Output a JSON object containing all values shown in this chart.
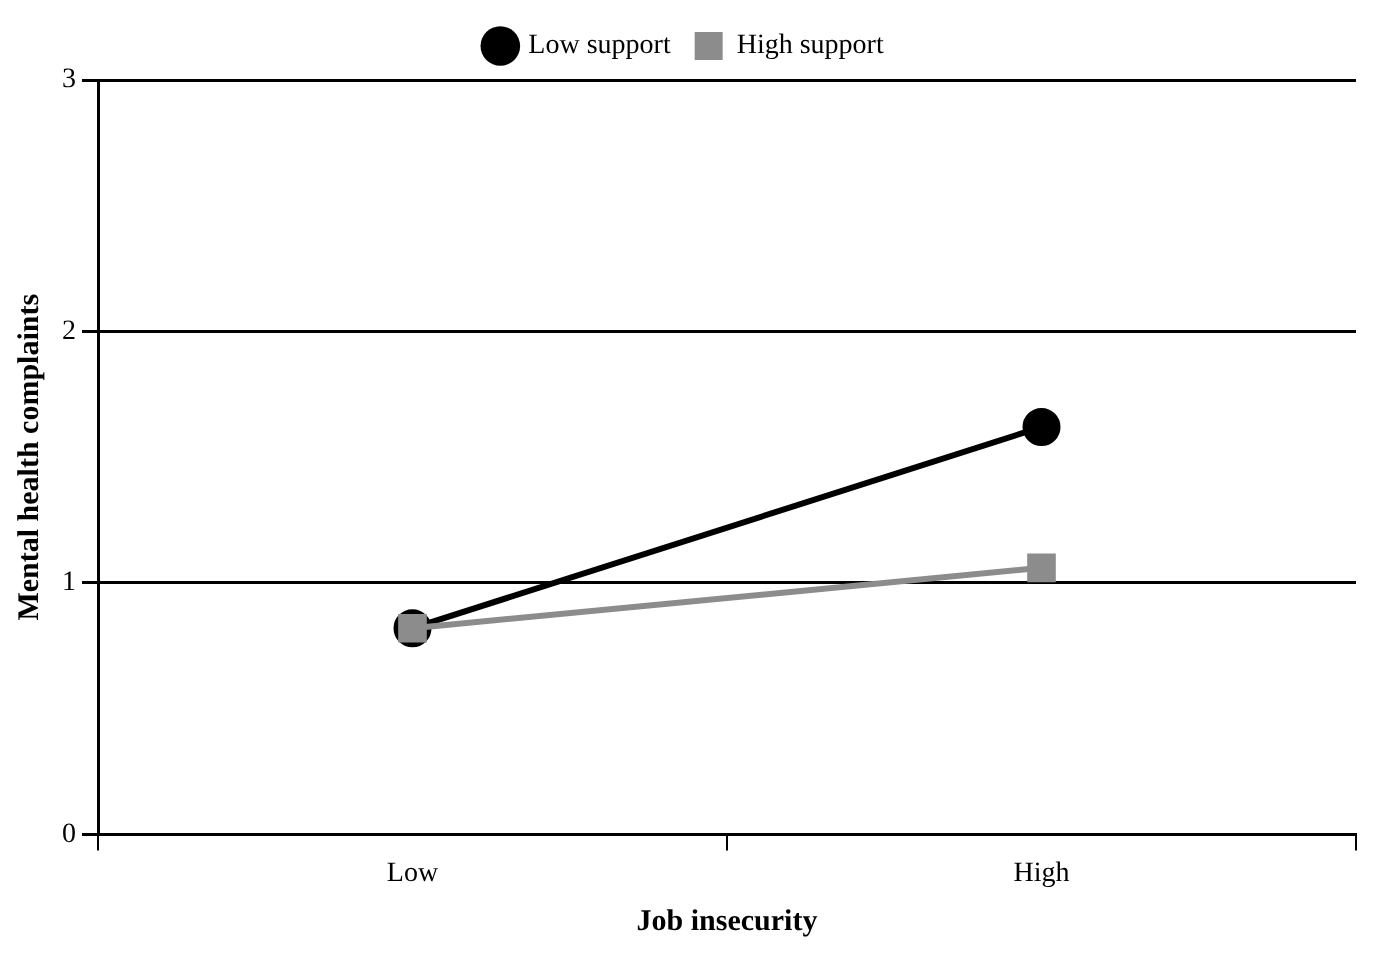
{
  "chart_data": {
    "type": "line",
    "xlabel": "Job insecurity",
    "ylabel": "Mental health complaints",
    "categories": [
      "Low",
      "High"
    ],
    "series": [
      {
        "name": "Low support",
        "color": "#000000",
        "marker": "circle",
        "values": [
          0.82,
          1.62
        ]
      },
      {
        "name": "High support",
        "color": "#8c8c8c",
        "marker": "square",
        "values": [
          0.82,
          1.06
        ]
      }
    ],
    "ylim": [
      0,
      3
    ],
    "yticks": [
      0,
      1,
      2,
      3
    ],
    "grid": "y",
    "legend": "top",
    "line_style": "solid"
  }
}
